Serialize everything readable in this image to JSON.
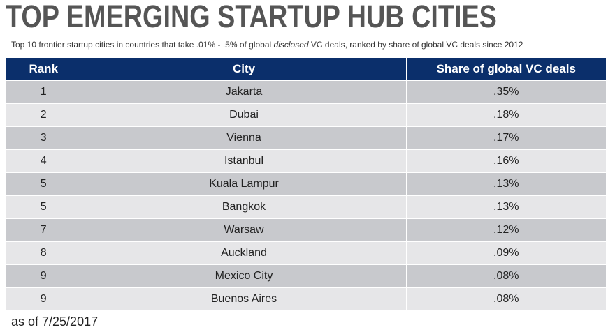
{
  "header": {
    "title": "TOP EMERGING STARTUP HUB CITIES",
    "subtitle_pre": "Top 10 frontier startup cities in countries that take .01% - .5% of global ",
    "subtitle_em": "disclosed",
    "subtitle_post": " VC deals, ranked by share of global VC deals since 2012"
  },
  "chart_data": {
    "type": "table",
    "columns": [
      "Rank",
      "City",
      "Share of global VC deals"
    ],
    "rows": [
      {
        "rank": "1",
        "city": "Jakarta",
        "share": ".35%"
      },
      {
        "rank": "2",
        "city": "Dubai",
        "share": ".18%"
      },
      {
        "rank": "3",
        "city": "Vienna",
        "share": ".17%"
      },
      {
        "rank": "4",
        "city": "Istanbul",
        "share": ".16%"
      },
      {
        "rank": "5",
        "city": "Kuala Lampur",
        "share": ".13%"
      },
      {
        "rank": "5",
        "city": "Bangkok",
        "share": ".13%"
      },
      {
        "rank": "7",
        "city": "Warsaw",
        "share": ".12%"
      },
      {
        "rank": "8",
        "city": "Auckland",
        "share": ".09%"
      },
      {
        "rank": "9",
        "city": "Mexico City",
        "share": ".08%"
      },
      {
        "rank": "9",
        "city": "Buenos Aires",
        "share": ".08%"
      }
    ]
  },
  "footer": {
    "note": "as of 7/25/2017"
  },
  "colors": {
    "header_bg": "#0b2f6b",
    "row_dark": "#c8c9cd",
    "row_light": "#e6e6e8",
    "title": "#555555"
  }
}
